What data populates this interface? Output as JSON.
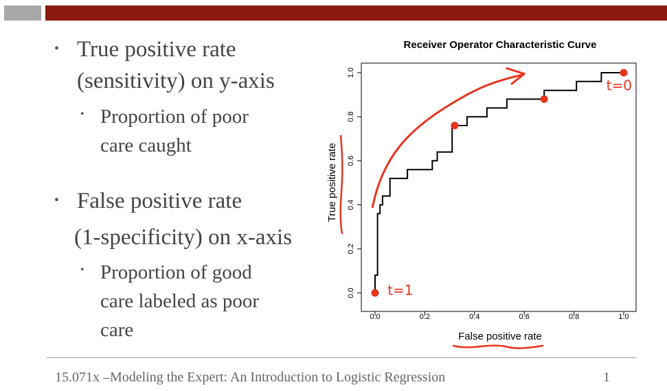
{
  "header": {
    "bar_gray_color": "#a8a8a8",
    "bar_red_color": "#8b1a10"
  },
  "bullets": [
    {
      "level": 1,
      "lines": [
        "True positive rate",
        "(sensitivity) on y-axis"
      ]
    },
    {
      "level": 2,
      "lines": [
        "Proportion of poor",
        "care caught"
      ]
    },
    {
      "level": 1,
      "lines": [
        "False positive rate",
        "(1-specificity) on x-axis"
      ]
    },
    {
      "level": 2,
      "lines": [
        "Proportion of good",
        "care labeled as poor",
        "care"
      ]
    }
  ],
  "chart_data": {
    "type": "line",
    "title": "Receiver Operator Characteristic Curve",
    "xlabel": "False positive rate",
    "ylabel": "True positive rate",
    "xlim": [
      0,
      1
    ],
    "ylim": [
      0,
      1
    ],
    "x_ticks": [
      "0.0",
      "0.2",
      "0.4",
      "0.6",
      "0.8",
      "1.0"
    ],
    "y_ticks": [
      "0.0",
      "0.2",
      "0.4",
      "0.6",
      "0.8",
      "1.0"
    ],
    "grid": false,
    "series": [
      {
        "color": "#000000",
        "x": [
          0,
          0,
          0.01,
          0.01,
          0.02,
          0.02,
          0.03,
          0.03,
          0.06,
          0.06,
          0.07,
          0.07,
          0.13,
          0.13,
          0.23,
          0.23,
          0.25,
          0.25,
          0.31,
          0.31,
          0.33,
          0.33,
          0.37,
          0.37,
          0.45,
          0.45,
          0.53,
          0.53,
          0.56,
          0.56,
          0.68,
          0.68,
          0.72,
          0.72,
          0.81,
          0.81,
          0.87,
          0.87,
          0.91,
          0.91,
          1.0
        ],
        "y": [
          0,
          0.08,
          0.08,
          0.36,
          0.36,
          0.4,
          0.4,
          0.44,
          0.44,
          0.52,
          0.52,
          0.52,
          0.52,
          0.56,
          0.56,
          0.6,
          0.6,
          0.64,
          0.64,
          0.76,
          0.76,
          0.76,
          0.76,
          0.8,
          0.8,
          0.84,
          0.84,
          0.88,
          0.88,
          0.88,
          0.88,
          0.92,
          0.92,
          0.92,
          0.92,
          0.96,
          0.96,
          0.96,
          0.96,
          1.0,
          1.0
        ]
      }
    ],
    "annotations": {
      "color": "#e8341c",
      "points": [
        {
          "x": 0.0,
          "y": 0.0
        },
        {
          "x": 0.32,
          "y": 0.76
        },
        {
          "x": 0.68,
          "y": 0.88
        },
        {
          "x": 1.0,
          "y": 1.0
        }
      ],
      "labels": [
        {
          "text": "t=1",
          "near": "lower-left point"
        },
        {
          "text": "t=0",
          "near": "upper-right point"
        }
      ]
    }
  },
  "footer": {
    "text": "15.071x –Modeling the Expert: An Introduction to Logistic Regression",
    "page": "1"
  }
}
